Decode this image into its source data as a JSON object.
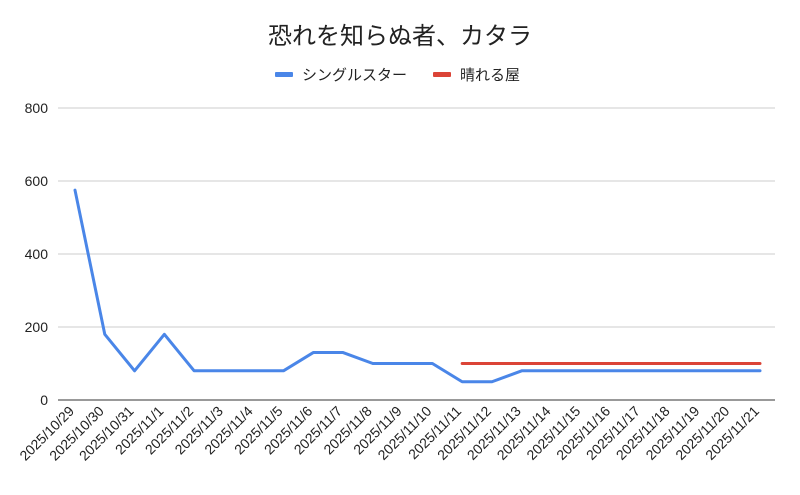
{
  "chart_data": {
    "type": "line",
    "title": "恐れを知らぬ者、カタラ",
    "xlabel": "",
    "ylabel": "",
    "categories": [
      "2025/10/29",
      "2025/10/30",
      "2025/10/31",
      "2025/11/1",
      "2025/11/2",
      "2025/11/3",
      "2025/11/4",
      "2025/11/5",
      "2025/11/6",
      "2025/11/7",
      "2025/11/8",
      "2025/11/9",
      "2025/11/10",
      "2025/11/11",
      "2025/11/12",
      "2025/11/13",
      "2025/11/14",
      "2025/11/15",
      "2025/11/16",
      "2025/11/17",
      "2025/11/18",
      "2025/11/19",
      "2025/11/20",
      "2025/11/21"
    ],
    "series": [
      {
        "name": "シングルスター",
        "color": "#4a86e8",
        "values": [
          575,
          180,
          80,
          180,
          80,
          80,
          80,
          80,
          130,
          130,
          100,
          100,
          100,
          50,
          50,
          80,
          80,
          80,
          80,
          80,
          80,
          80,
          80,
          80
        ]
      },
      {
        "name": "晴れる屋",
        "color": "#db4437",
        "values": [
          null,
          null,
          null,
          null,
          null,
          null,
          null,
          null,
          null,
          null,
          null,
          null,
          null,
          100,
          100,
          100,
          100,
          100,
          100,
          100,
          100,
          100,
          100,
          100
        ]
      }
    ],
    "ylim": [
      0,
      800
    ],
    "yticks": [
      0,
      200,
      400,
      600,
      800
    ],
    "grid": true,
    "legend_position": "top-center"
  }
}
